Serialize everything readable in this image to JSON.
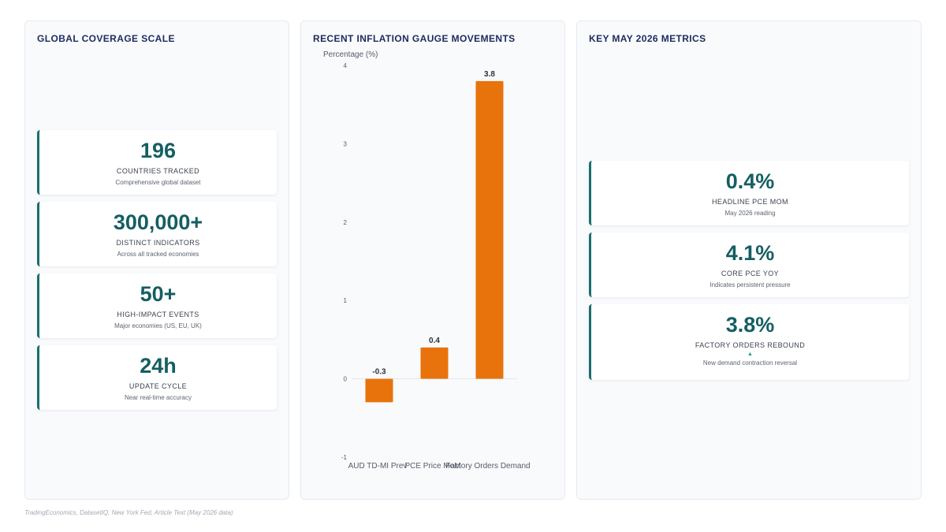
{
  "coverage": {
    "title": "GLOBAL COVERAGE SCALE",
    "cards": [
      {
        "value": "196",
        "label": "COUNTRIES TRACKED",
        "sub": "Comprehensive global dataset"
      },
      {
        "value": "300,000+",
        "label": "DISTINCT INDICATORS",
        "sub": "Across all tracked economies"
      },
      {
        "value": "50+",
        "label": "HIGH-IMPACT EVENTS",
        "sub": "Major economies (US, EU, UK)"
      },
      {
        "value": "24h",
        "label": "UPDATE CYCLE",
        "sub": "Near real-time accuracy"
      }
    ]
  },
  "chart_panel": {
    "title": "RECENT INFLATION GAUGE MOVEMENTS"
  },
  "chart_data": {
    "type": "bar",
    "title": "RECENT INFLATION GAUGE MOVEMENTS",
    "ylabel": "Percentage (%)",
    "xlabel": "",
    "categories": [
      "AUD TD-MI Prev",
      "PCE Price MoM",
      "Factory Orders Demand"
    ],
    "values": [
      -0.3,
      0.4,
      3.8
    ],
    "data_labels": [
      "-0.3",
      "0.4",
      "3.8"
    ],
    "ylim": [
      -1,
      4
    ],
    "yticks": [
      -1,
      0,
      1,
      2,
      3,
      4
    ],
    "bar_color": "#e8730c",
    "grid": false,
    "legend": "none"
  },
  "metrics": {
    "title": "KEY MAY 2026 METRICS",
    "cards": [
      {
        "value": "0.4%",
        "label": "HEADLINE PCE MOM",
        "sub": "May 2026 reading"
      },
      {
        "value": "4.1%",
        "label": "CORE PCE YOY",
        "sub": "Indicates persistent pressure"
      },
      {
        "value": "3.8%",
        "label": "FACTORY ORDERS REBOUND",
        "arrow": "▲",
        "sub": "New demand contraction reversal"
      }
    ]
  },
  "source": "TradingEconomics, DatasetIQ, New York Fed, Article Text (May 2026 data)",
  "colors": {
    "accent": "#155e63",
    "bar": "#e8730c",
    "title": "#1e2a5c",
    "trend_up": "#1a9e7a"
  }
}
